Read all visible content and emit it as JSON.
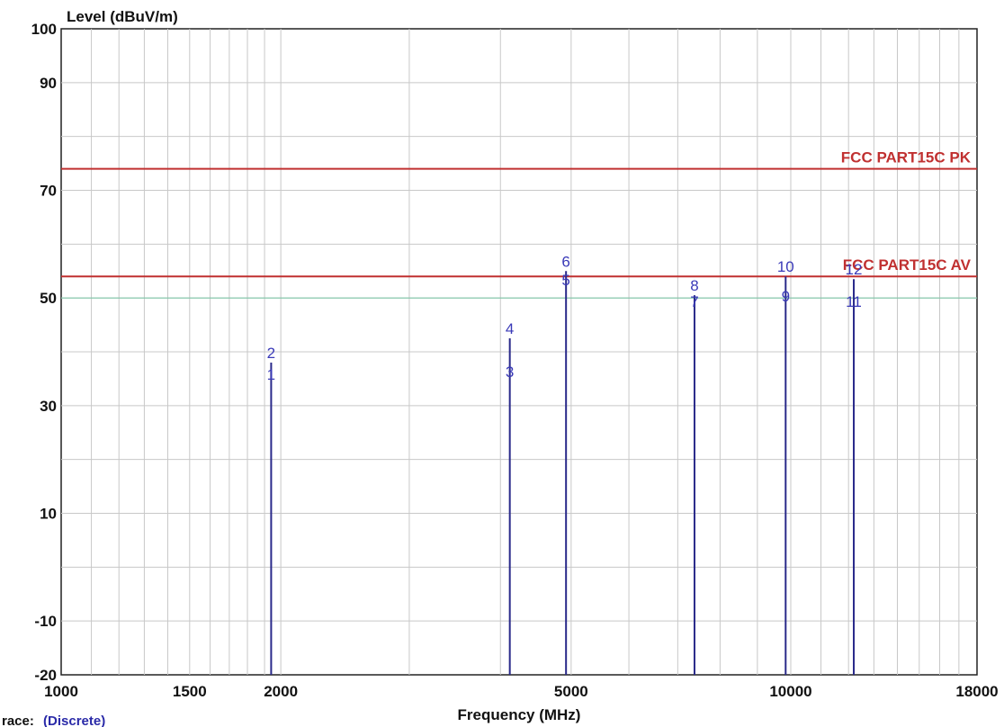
{
  "chart_data": {
    "type": "line",
    "title": "",
    "ylabel": "Level (dBuV/m)",
    "xlabel": "Frequency (MHz)",
    "xscale": "log",
    "xlim": [
      1000,
      18000
    ],
    "ylim": [
      -20,
      100
    ],
    "x_ticks": [
      1000,
      1500,
      2000,
      5000,
      10000,
      18000
    ],
    "x_tick_labels": [
      "1000",
      "1500",
      "2000",
      "5000",
      "10000",
      "18000"
    ],
    "y_ticks": [
      -20,
      -10,
      10,
      30,
      50,
      70,
      90,
      100
    ],
    "y_tick_labels": [
      "-20",
      "-10",
      "10",
      "30",
      "50",
      "70",
      "90",
      "100"
    ],
    "grid": true,
    "limit_lines": [
      {
        "name": "FCC PART15C  PK",
        "value": 74,
        "color": "#c03030"
      },
      {
        "name": "FCC PART15C  AV",
        "value": 54,
        "color": "#c03030"
      }
    ],
    "reference_line": {
      "value": 50,
      "color": "#7fc7a8"
    },
    "trace_color": "#2a2a8a",
    "marker_color": "#3a3ab8",
    "markers": [
      {
        "label": "1",
        "x": 1940,
        "y": 34
      },
      {
        "label": "2",
        "x": 1940,
        "y": 38
      },
      {
        "label": "3",
        "x": 4120,
        "y": 34.5
      },
      {
        "label": "4",
        "x": 4120,
        "y": 42.5
      },
      {
        "label": "5",
        "x": 4920,
        "y": 51.5
      },
      {
        "label": "6",
        "x": 4920,
        "y": 55
      },
      {
        "label": "7",
        "x": 7380,
        "y": 47.5
      },
      {
        "label": "8",
        "x": 7380,
        "y": 50.5
      },
      {
        "label": "9",
        "x": 9840,
        "y": 48.5
      },
      {
        "label": "10",
        "x": 9840,
        "y": 54
      },
      {
        "label": "11",
        "x": 12200,
        "y": 47.5
      },
      {
        "label": "12",
        "x": 12200,
        "y": 53.5
      }
    ],
    "spikes": [
      {
        "x": 1940,
        "y": 38
      },
      {
        "x": 4120,
        "y": 42.5
      },
      {
        "x": 4920,
        "y": 55
      },
      {
        "x": 7380,
        "y": 50.5
      },
      {
        "x": 9840,
        "y": 54
      },
      {
        "x": 12200,
        "y": 53.5
      }
    ]
  },
  "trace_note": {
    "prefix": "race:",
    "value": "(Discrete)"
  }
}
